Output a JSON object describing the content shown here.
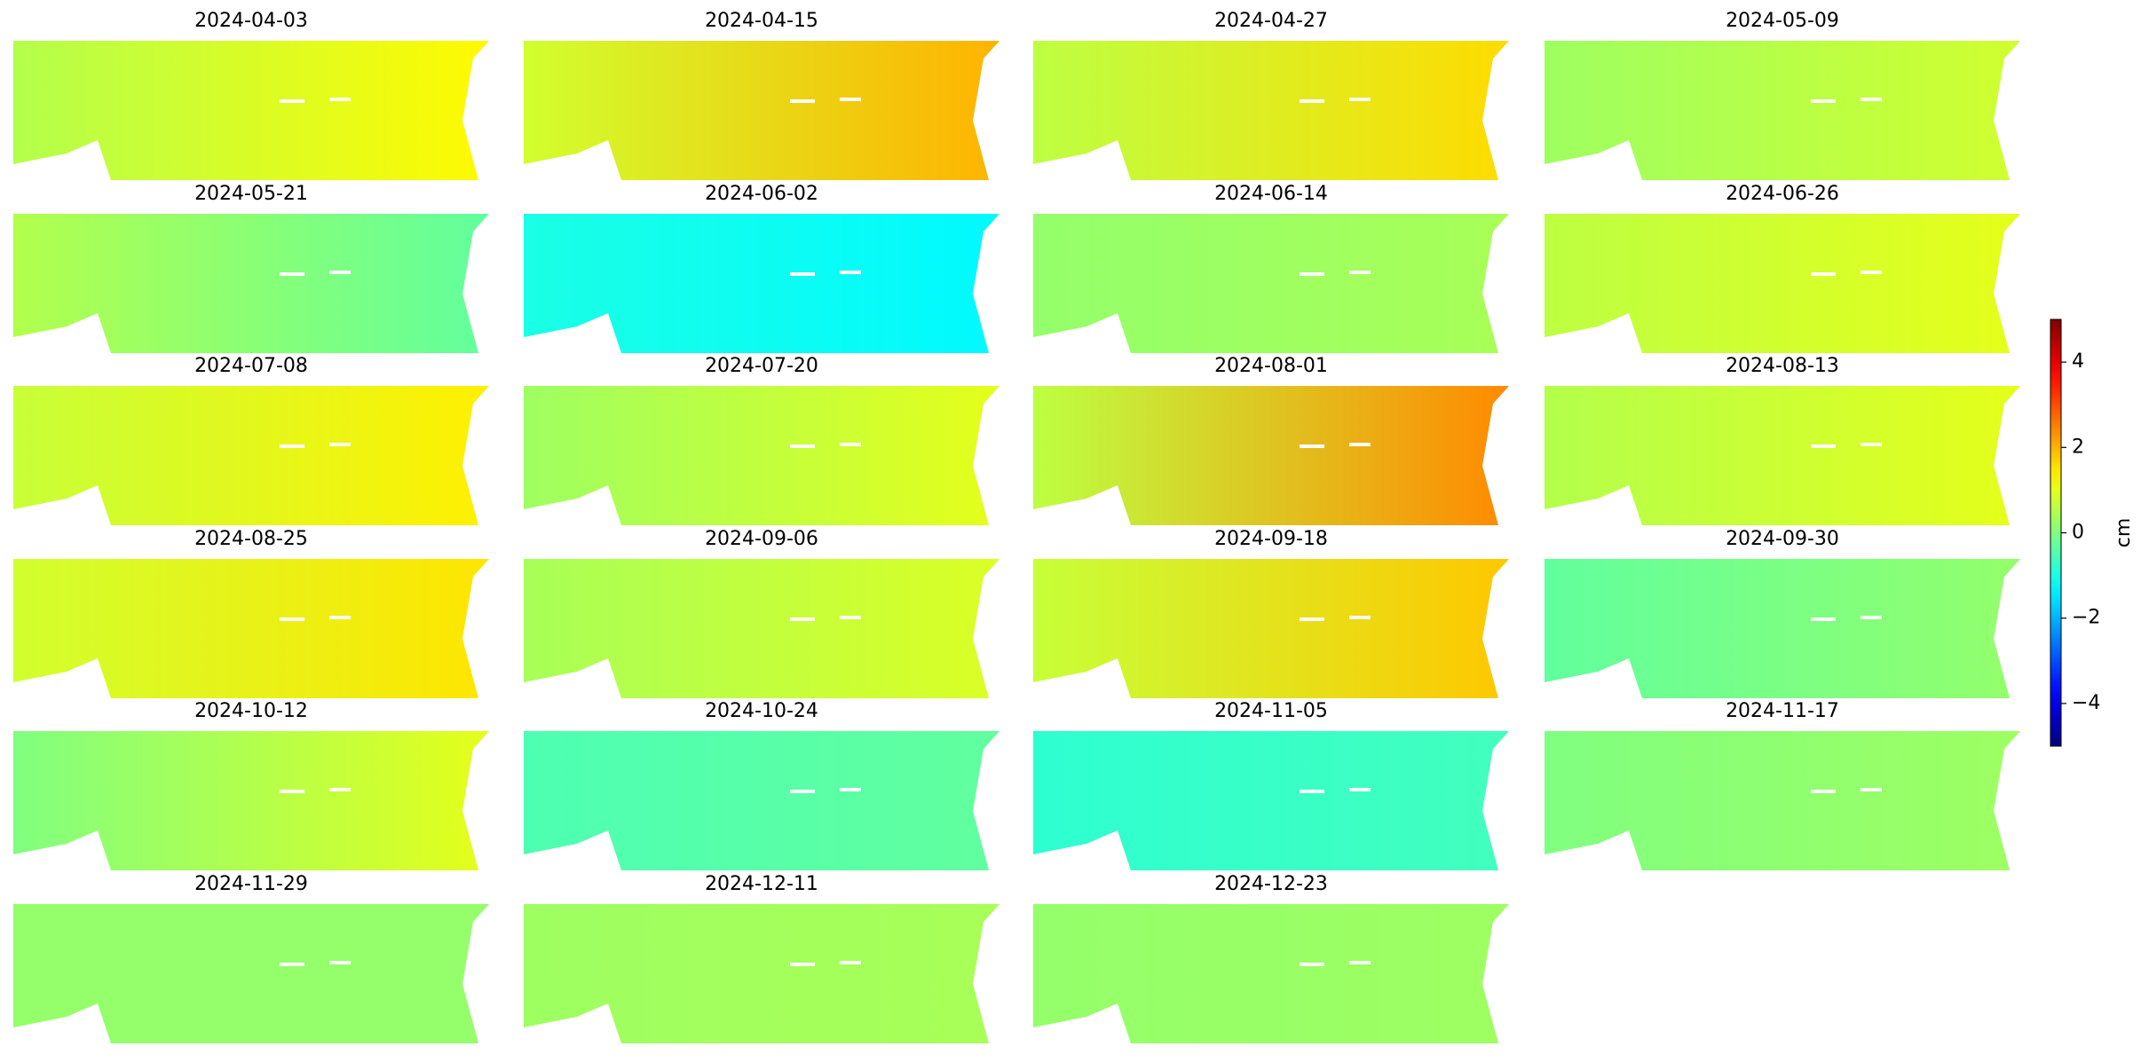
{
  "chart_data": {
    "type": "map-grid",
    "colormap": "jet",
    "clim": [
      -5,
      5
    ],
    "colorbar": {
      "label": "cm",
      "ticks": [
        -4,
        -2,
        0,
        2,
        4
      ]
    },
    "panels": [
      {
        "title": "2024-04-03",
        "values": [
          0.5,
          1.3
        ]
      },
      {
        "title": "2024-04-15",
        "values": [
          0.8,
          2.0
        ]
      },
      {
        "title": "2024-04-27",
        "values": [
          0.6,
          1.6
        ]
      },
      {
        "title": "2024-05-09",
        "values": [
          0.3,
          0.8
        ]
      },
      {
        "title": "2024-05-21",
        "values": [
          0.5,
          -0.3
        ]
      },
      {
        "title": "2024-06-02",
        "values": [
          -1.0,
          -1.3
        ]
      },
      {
        "title": "2024-06-14",
        "values": [
          0.2,
          0.4
        ]
      },
      {
        "title": "2024-06-26",
        "values": [
          0.6,
          1.0
        ]
      },
      {
        "title": "2024-07-08",
        "values": [
          0.7,
          1.4
        ]
      },
      {
        "title": "2024-07-20",
        "values": [
          0.3,
          1.0
        ]
      },
      {
        "title": "2024-08-01",
        "values": [
          0.6,
          2.4
        ]
      },
      {
        "title": "2024-08-13",
        "values": [
          0.5,
          1.0
        ]
      },
      {
        "title": "2024-08-25",
        "values": [
          0.8,
          1.5
        ]
      },
      {
        "title": "2024-09-06",
        "values": [
          0.4,
          0.9
        ]
      },
      {
        "title": "2024-09-18",
        "values": [
          0.7,
          1.8
        ]
      },
      {
        "title": "2024-09-30",
        "values": [
          -0.3,
          0.2
        ]
      },
      {
        "title": "2024-10-12",
        "values": [
          0.0,
          1.0
        ]
      },
      {
        "title": "2024-10-24",
        "values": [
          -0.5,
          -0.3
        ]
      },
      {
        "title": "2024-11-05",
        "values": [
          -0.8,
          -0.6
        ]
      },
      {
        "title": "2024-11-17",
        "values": [
          0.0,
          0.3
        ]
      },
      {
        "title": "2024-11-29",
        "values": [
          0.2,
          0.2
        ]
      },
      {
        "title": "2024-12-11",
        "values": [
          0.3,
          0.4
        ]
      },
      {
        "title": "2024-12-23",
        "values": [
          0.2,
          0.3
        ]
      }
    ]
  }
}
